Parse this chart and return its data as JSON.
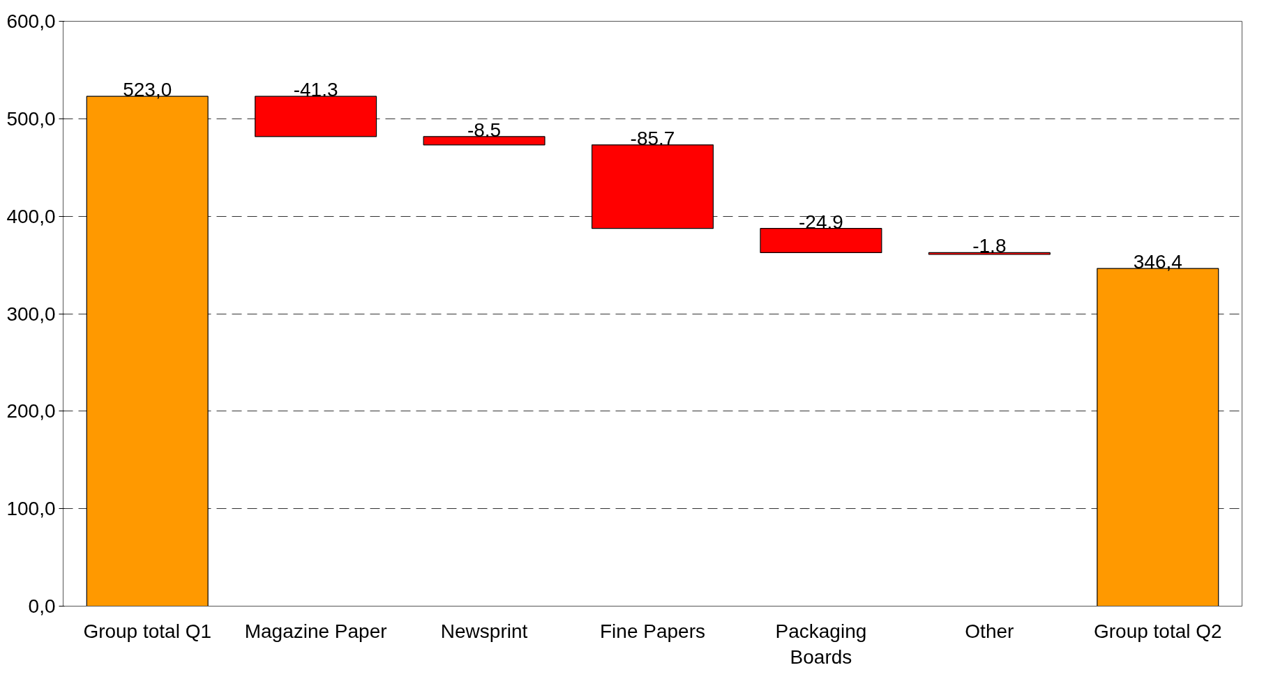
{
  "chart_data": {
    "type": "bar",
    "categories": [
      "Group total Q1",
      "Magazine Paper",
      "Newsprint",
      "Fine Papers",
      "Packaging Boards",
      "Other",
      "Group total Q2"
    ],
    "values": [
      523.0,
      -41.3,
      -8.5,
      -85.7,
      -24.9,
      -1.8,
      346.4
    ],
    "base": [
      0,
      523.0,
      481.7,
      473.2,
      387.5,
      362.6,
      0
    ],
    "colors": [
      "#ff9900",
      "#ff0000",
      "#ff0000",
      "#ff0000",
      "#ff0000",
      "#ff0000",
      "#ff9900"
    ],
    "value_labels": [
      "523,0",
      "-41.3",
      "-8.5",
      "-85.7",
      "-24.9",
      "-1.8",
      "346,4"
    ],
    "ylim": [
      0,
      600
    ],
    "yticks": [
      {
        "value": 0,
        "label": "0,0"
      },
      {
        "value": 100,
        "label": "100,0"
      },
      {
        "value": 200,
        "label": "200,0"
      },
      {
        "value": 300,
        "label": "300,0"
      },
      {
        "value": 400,
        "label": "400,0"
      },
      {
        "value": 500,
        "label": "500,0"
      },
      {
        "value": 600,
        "label": "600,0"
      }
    ],
    "grid": "y"
  }
}
